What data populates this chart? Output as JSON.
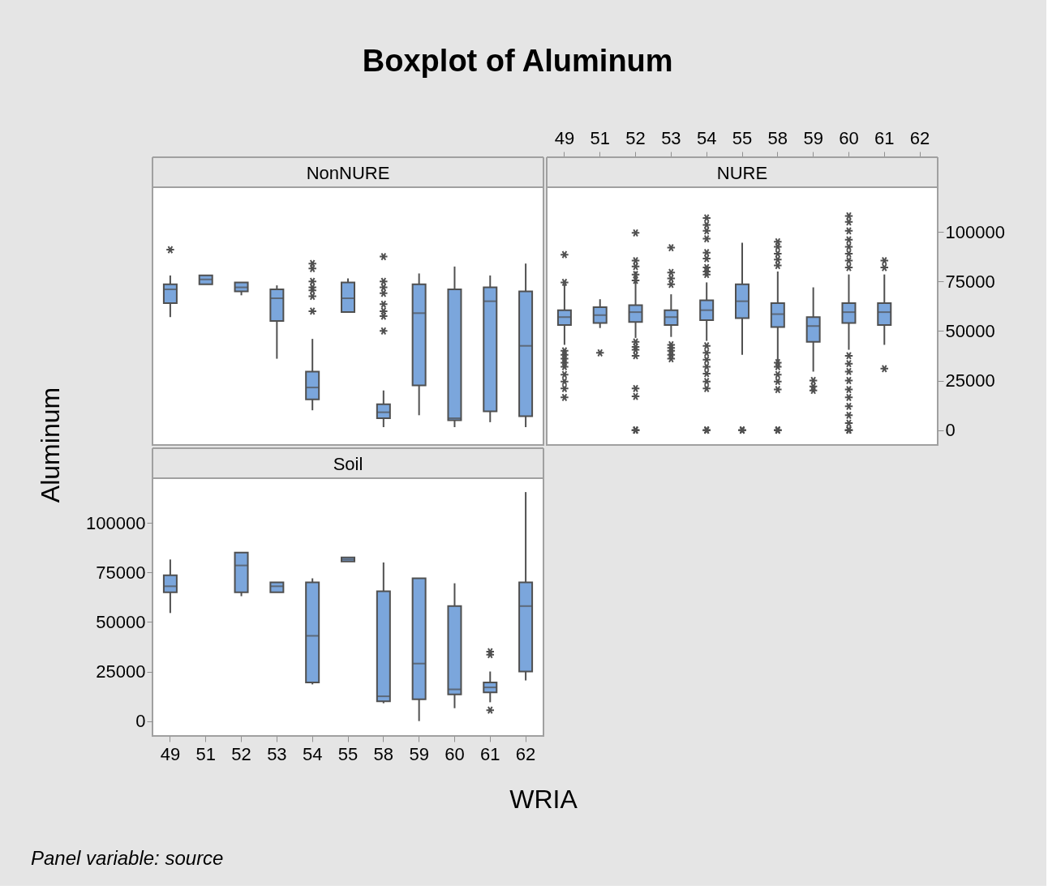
{
  "chart_data": [
    {
      "type": "box",
      "title": "Boxplot of Aluminum",
      "subtitle": "NonNURE",
      "xlabel": "WRIA",
      "ylabel": "Aluminum",
      "annotations": [
        "Panel variable: source"
      ],
      "color": "#7ba6dc",
      "tick_labels": false,
      "categories": [
        "49",
        "51",
        "52",
        "53",
        "54",
        "55",
        "58",
        "59",
        "60",
        "61",
        "62"
      ],
      "ylim": [
        -7500,
        122500
      ],
      "yticks": [
        0,
        25000,
        50000,
        75000,
        100000
      ],
      "boxes": [
        {
          "low": 57000,
          "q1": 64000,
          "median": 71000,
          "q3": 73500,
          "high": 78000,
          "outliers": [
            91000
          ]
        },
        {
          "low": 73500,
          "q1": 73500,
          "median": 76000,
          "q3": 78000,
          "high": 78000
        },
        {
          "low": 68000,
          "q1": 70000,
          "median": 72000,
          "q3": 74500,
          "high": 74500
        },
        {
          "low": 36000,
          "q1": 55000,
          "median": 66500,
          "q3": 71000,
          "high": 73000
        },
        {
          "low": 10000,
          "q1": 15500,
          "median": 21500,
          "q3": 29500,
          "high": 46000,
          "outliers": [
            84000,
            81500,
            75000,
            72000,
            70500,
            67500,
            60000
          ]
        },
        {
          "low": 59500,
          "q1": 59500,
          "median": 66500,
          "q3": 74500,
          "high": 76500
        },
        {
          "low": 1500,
          "q1": 6000,
          "median": 9000,
          "q3": 13000,
          "high": 20000,
          "outliers": [
            87500,
            75000,
            72000,
            69000,
            63500,
            60000,
            57500,
            50000
          ]
        },
        {
          "low": 7500,
          "q1": 22500,
          "median": 59000,
          "q3": 73500,
          "high": 79000
        },
        {
          "low": 1500,
          "q1": 5000,
          "median": 6000,
          "q3": 71000,
          "high": 82500
        },
        {
          "low": 4000,
          "q1": 9500,
          "median": 65000,
          "q3": 72000,
          "high": 78000
        },
        {
          "low": 1500,
          "q1": 7000,
          "median": 42500,
          "q3": 70000,
          "high": 84000
        }
      ]
    },
    {
      "type": "box",
      "subtitle": "NURE",
      "color": "#7ba6dc",
      "categories": [
        "49",
        "51",
        "52",
        "53",
        "54",
        "55",
        "58",
        "59",
        "60",
        "61",
        "62"
      ],
      "ylim": [
        -7500,
        122500
      ],
      "yticks": [
        0,
        25000,
        50000,
        75000,
        100000
      ],
      "boxes": [
        {
          "low": 43000,
          "q1": 53000,
          "median": 57000,
          "q3": 60500,
          "high": 73500,
          "outliers": [
            88500,
            74500,
            40000,
            38000,
            36000,
            34000,
            32000,
            28000,
            24500,
            21000,
            16500
          ]
        },
        {
          "low": 51500,
          "q1": 54000,
          "median": 58000,
          "q3": 62000,
          "high": 66000,
          "outliers": [
            39000
          ]
        },
        {
          "low": 46500,
          "q1": 54500,
          "median": 59500,
          "q3": 63000,
          "high": 80000,
          "outliers": [
            99500,
            85500,
            82500,
            78500,
            75500,
            44500,
            42000,
            40500,
            37500,
            21000,
            17000,
            0,
            0,
            0
          ]
        },
        {
          "low": 47000,
          "q1": 53000,
          "median": 57000,
          "q3": 60500,
          "high": 68500,
          "outliers": [
            92000,
            79500,
            76500,
            73500,
            43000,
            41500,
            40000,
            38000,
            36000
          ]
        },
        {
          "low": 45000,
          "q1": 55500,
          "median": 60500,
          "q3": 65500,
          "high": 74500,
          "outliers": [
            107000,
            103500,
            100500,
            96500,
            89500,
            86500,
            82000,
            80000,
            78500,
            42500,
            39000,
            35500,
            32000,
            28500,
            24500,
            21000,
            0,
            0,
            0
          ]
        },
        {
          "low": 38000,
          "q1": 56500,
          "median": 65000,
          "q3": 73500,
          "high": 94500,
          "outliers": [
            0,
            0,
            0
          ]
        },
        {
          "low": 35000,
          "q1": 52000,
          "median": 58500,
          "q3": 64000,
          "high": 80000,
          "outliers": [
            95000,
            92500,
            89000,
            86000,
            83000,
            34000,
            32000,
            28000,
            24500,
            20500,
            0,
            0,
            0
          ]
        },
        {
          "low": 29500,
          "q1": 44500,
          "median": 52500,
          "q3": 57000,
          "high": 72000,
          "outliers": [
            25000,
            22000,
            20000
          ]
        },
        {
          "low": 40500,
          "q1": 54000,
          "median": 59500,
          "q3": 64000,
          "high": 78500,
          "outliers": [
            108000,
            105000,
            100500,
            96000,
            92500,
            89000,
            85500,
            82000,
            37500,
            33500,
            29500,
            25000,
            20500,
            16500,
            12000,
            7500,
            3500,
            0,
            0,
            0
          ]
        },
        {
          "low": 43000,
          "q1": 53000,
          "median": 59500,
          "q3": 64000,
          "high": 78500,
          "outliers": [
            85500,
            82000,
            31000
          ]
        },
        null
      ]
    },
    {
      "type": "box",
      "subtitle": "Soil",
      "color": "#7ba6dc",
      "categories": [
        "49",
        "51",
        "52",
        "53",
        "54",
        "55",
        "58",
        "59",
        "60",
        "61",
        "62"
      ],
      "ylim": [
        -7500,
        122500
      ],
      "yticks": [
        0,
        25000,
        50000,
        75000,
        100000
      ],
      "boxes": [
        {
          "low": 54500,
          "q1": 65000,
          "median": 68000,
          "q3": 73500,
          "high": 81500
        },
        null,
        {
          "low": 63000,
          "q1": 65000,
          "median": 78500,
          "q3": 85000,
          "high": 85000
        },
        {
          "low": 65000,
          "q1": 65000,
          "median": 68000,
          "q3": 70000,
          "high": 70000
        },
        {
          "low": 18500,
          "q1": 19500,
          "median": 43000,
          "q3": 70000,
          "high": 72000
        },
        {
          "low": 80500,
          "q1": 80500,
          "median": 81500,
          "q3": 82500,
          "high": 82500
        },
        {
          "low": 9000,
          "q1": 10000,
          "median": 12500,
          "q3": 65500,
          "high": 80000
        },
        {
          "low": 0,
          "q1": 11000,
          "median": 29000,
          "q3": 72000,
          "high": 72000
        },
        {
          "low": 6500,
          "q1": 13500,
          "median": 16000,
          "q3": 58000,
          "high": 69500
        },
        {
          "low": 9500,
          "q1": 14500,
          "median": 17000,
          "q3": 19500,
          "high": 25000,
          "outliers": [
            35000,
            33500,
            5500
          ]
        },
        {
          "low": 20500,
          "q1": 25000,
          "median": 58000,
          "q3": 70000,
          "high": 115500
        }
      ]
    }
  ]
}
